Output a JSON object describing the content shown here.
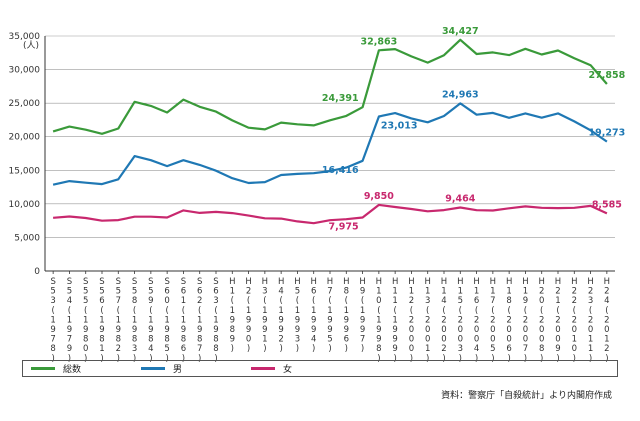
{
  "chart_data": {
    "type": "line",
    "title": "",
    "xlabel": "",
    "ylabel": "",
    "y_unit_label": "(人)",
    "ylim": [
      0,
      35000
    ],
    "yticks": [
      "0",
      "5,000",
      "10,000",
      "15,000",
      "20,000",
      "25,000",
      "30,000",
      "35,000"
    ],
    "grid": "horizontal",
    "legend_position": "bottom",
    "categories": [
      "S53(1978)",
      "S54(1979)",
      "S55(1980)",
      "S56(1981)",
      "S57(1982)",
      "S58(1983)",
      "S59(1984)",
      "S60(1985)",
      "S61(1986)",
      "S62(1987)",
      "S63(1988)",
      "H1(1989)",
      "H2(1990)",
      "H3(1991)",
      "H4(1992)",
      "H5(1993)",
      "H6(1994)",
      "H7(1995)",
      "H8(1996)",
      "H9(1997)",
      "H10(1998)",
      "H11(1999)",
      "H12(2000)",
      "H13(2001)",
      "H14(2002)",
      "H15(2003)",
      "H16(2004)",
      "H17(2005)",
      "H18(2006)",
      "H19(2007)",
      "H20(2008)",
      "H21(2009)",
      "H22(2010)",
      "H23(2011)",
      "H24(2012)"
    ],
    "series": [
      {
        "name": "総数",
        "color": "#3a9a3a",
        "values": [
          20788,
          21503,
          21048,
          20434,
          21228,
          25202,
          24596,
          23599,
          25524,
          24460,
          23742,
          22436,
          21346,
          21084,
          22104,
          21851,
          21679,
          22445,
          23104,
          24391,
          32863,
          33048,
          31957,
          31042,
          32143,
          34427,
          32325,
          32552,
          32155,
          33093,
          32249,
          32845,
          31690,
          30651,
          27858
        ]
      },
      {
        "name": "男",
        "color": "#1f78b4",
        "values": [
          12859,
          13386,
          13155,
          12942,
          13654,
          17116,
          16508,
          15624,
          16499,
          15802,
          14934,
          13818,
          13102,
          13242,
          14296,
          14468,
          14560,
          14874,
          15393,
          16416,
          23013,
          23512,
          22727,
          22144,
          23080,
          24963,
          23272,
          23540,
          22813,
          23478,
          22831,
          23472,
          22283,
          20955,
          19273
        ]
      },
      {
        "name": "女",
        "color": "#c8286e",
        "values": [
          7929,
          8117,
          7893,
          7492,
          7574,
          8086,
          8088,
          7975,
          9025,
          8658,
          8808,
          8618,
          8244,
          7842,
          7808,
          7383,
          7119,
          7571,
          7711,
          7975,
          9850,
          9536,
          9230,
          8898,
          9063,
          9464,
          9053,
          9012,
          9342,
          9615,
          9418,
          9373,
          9407,
          9696,
          8585
        ]
      }
    ],
    "annotations": [
      {
        "series": 0,
        "index": 19,
        "text": "24,391",
        "position": "above-left"
      },
      {
        "series": 0,
        "index": 20,
        "text": "32,863",
        "position": "above"
      },
      {
        "series": 0,
        "index": 25,
        "text": "34,427",
        "position": "above"
      },
      {
        "series": 0,
        "index": 34,
        "text": "27,858",
        "position": "above"
      },
      {
        "series": 1,
        "index": 19,
        "text": "16,416",
        "position": "below-left"
      },
      {
        "series": 1,
        "index": 20,
        "text": "23,013",
        "position": "below-right"
      },
      {
        "series": 1,
        "index": 25,
        "text": "24,963",
        "position": "above"
      },
      {
        "series": 1,
        "index": 34,
        "text": "19,273",
        "position": "above"
      },
      {
        "series": 2,
        "index": 19,
        "text": "7,975",
        "position": "below-left"
      },
      {
        "series": 2,
        "index": 20,
        "text": "9,850",
        "position": "above"
      },
      {
        "series": 2,
        "index": 25,
        "text": "9,464",
        "position": "above"
      },
      {
        "series": 2,
        "index": 34,
        "text": "8,585",
        "position": "above"
      }
    ]
  },
  "legend": {
    "items": [
      {
        "label": "総数",
        "color": "#3a9a3a"
      },
      {
        "label": "男",
        "color": "#1f78b4"
      },
      {
        "label": "女",
        "color": "#c8286e"
      }
    ]
  },
  "source": "資料：警察庁「自殺統計」より内閣府作成"
}
